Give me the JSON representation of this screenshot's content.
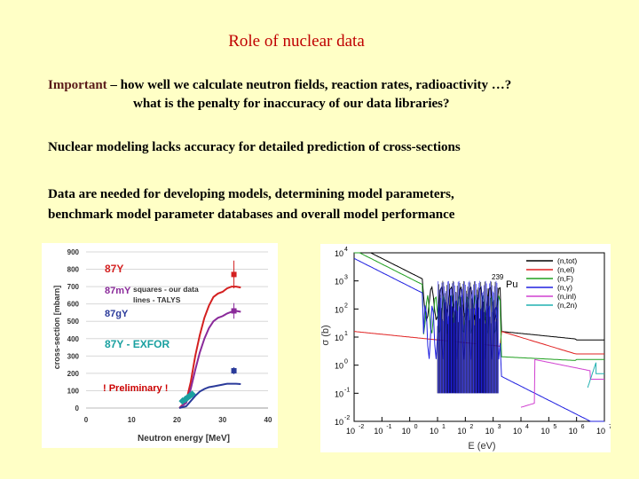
{
  "slide": {
    "title": "Role of nuclear data",
    "line1_kw": "Important",
    "line1_rest": " – how well we calculate neutron fields, reaction rates, radioactivity …?",
    "line2": "what is the penalty for inaccuracy of our data libraries?",
    "line3": "Nuclear modeling lacks accuracy for detailed prediction of cross-sections",
    "line4": "Data are needed for developing models, determining model parameters,",
    "line5": "benchmark model parameter databases and overall model performance"
  },
  "chart_data": [
    {
      "type": "line",
      "xlabel": "Neutron energy [MeV]",
      "ylabel": "cross-section [mbarn]",
      "xlim": [
        0,
        40
      ],
      "ylim": [
        0,
        900
      ],
      "xticks": [
        "0",
        "10",
        "20",
        "30",
        "40"
      ],
      "yticks": [
        "0",
        "100",
        "200",
        "300",
        "400",
        "500",
        "600",
        "700",
        "800",
        "900"
      ],
      "annotations": {
        "y87": "87Y",
        "y87m": "87mY",
        "y87g": "87gY",
        "exfor": "87Y - EXFOR",
        "legend1": "squares - our data",
        "legend2": "lines - TALYS",
        "prelim": "! Preliminary !"
      },
      "colors": {
        "y87": "#d42020",
        "y87m": "#8a2a9a",
        "y87g": "#2a3a9a",
        "exfor": "#1aa0a0",
        "prelim": "#cc0000"
      },
      "series": [
        {
          "name": "87Y",
          "x": [
            20.5,
            22,
            23,
            24,
            25,
            26,
            27,
            28,
            29,
            30,
            31,
            32,
            33,
            34
          ],
          "y": [
            0,
            40,
            150,
            300,
            420,
            520,
            590,
            640,
            660,
            670,
            690,
            700,
            700,
            695
          ]
        },
        {
          "name": "87mY",
          "x": [
            20.5,
            22,
            23,
            24,
            25,
            26,
            27,
            28,
            29,
            30,
            31,
            32,
            33,
            34
          ],
          "y": [
            0,
            30,
            110,
            220,
            320,
            400,
            460,
            500,
            520,
            530,
            545,
            555,
            560,
            555
          ]
        },
        {
          "name": "87gY",
          "x": [
            20.5,
            22,
            23,
            24,
            25,
            26,
            27,
            28,
            29,
            30,
            31,
            32,
            33,
            34
          ],
          "y": [
            0,
            10,
            40,
            70,
            95,
            110,
            120,
            125,
            130,
            135,
            140,
            140,
            140,
            138
          ]
        }
      ],
      "measured": [
        {
          "name": "87Y",
          "x": [
            32.5
          ],
          "y": [
            770
          ]
        },
        {
          "name": "87mY",
          "x": [
            32.5
          ],
          "y": [
            560
          ]
        },
        {
          "name": "87gY",
          "x": [
            32.5
          ],
          "y": [
            215
          ]
        },
        {
          "name": "87Y - EXFOR",
          "x": [
            21.2,
            21.8,
            22.3,
            22.8,
            23.3
          ],
          "y": [
            40,
            50,
            60,
            70,
            80
          ]
        }
      ]
    },
    {
      "type": "line",
      "xlabel": "E (eV)",
      "ylabel": "σ (b)",
      "xscale": "log",
      "yscale": "log",
      "xlim": [
        -2,
        7
      ],
      "ylim": [
        -2,
        4
      ],
      "xtick_base": "10",
      "xtick_exps": [
        "-2",
        "-1",
        "0",
        "1",
        "2",
        "3",
        "4",
        "5",
        "6",
        "7"
      ],
      "ytick_base": "10",
      "ytick_exps": [
        "-2",
        "-1",
        "0",
        "1",
        "2",
        "3",
        "4"
      ],
      "isotope_mass": "239",
      "isotope_sym": "Pu",
      "legend_entries": [
        "(n,tot)",
        "(n,el)",
        "(n,F)",
        "(n,γ)",
        "(n,inl)",
        "(n,2n)"
      ],
      "colors": [
        "#000000",
        "#e02020",
        "#20a020",
        "#2020e0",
        "#d040d0",
        "#20b0b0"
      ]
    }
  ]
}
